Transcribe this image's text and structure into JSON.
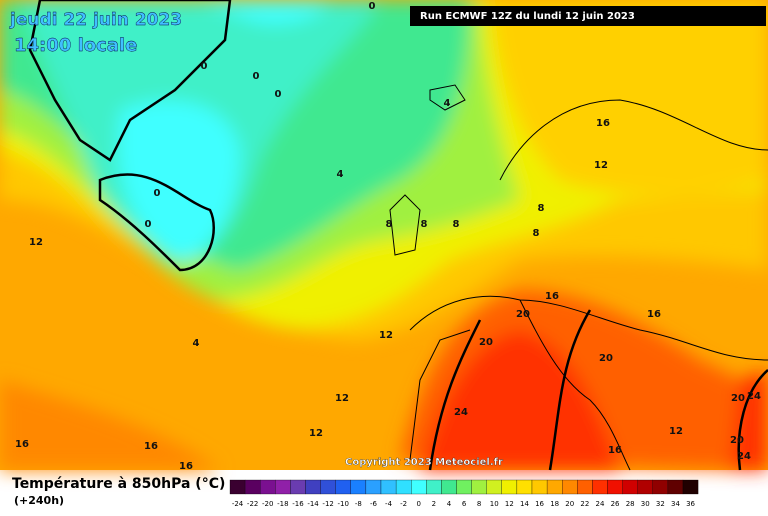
{
  "header": {
    "date": "jeudi 22 juin 2023",
    "time": "14:00 locale",
    "run": "Run ECMWF 12Z du lundi 12 juin 2023"
  },
  "copyright": "Copyright 2023 Meteociel.fr",
  "footer": {
    "title": "Température à 850hPa (°C)",
    "lead": "(+240h)"
  },
  "legend": {
    "labels": [
      "-24",
      "-22",
      "-20",
      "-18",
      "-16",
      "-14",
      "-12",
      "-10",
      "-8",
      "-6",
      "-4",
      "-2",
      "0",
      "2",
      "4",
      "6",
      "8",
      "10",
      "12",
      "14",
      "16",
      "18",
      "20",
      "22",
      "24",
      "26",
      "28",
      "30",
      "32",
      "34",
      "36"
    ],
    "colors": [
      "#3a0030",
      "#5a0060",
      "#7a1090",
      "#9020a8",
      "#6a3cb0",
      "#4040c0",
      "#3050d8",
      "#2060f0",
      "#1a80ff",
      "#2aa0ff",
      "#30c0ff",
      "#30e0ff",
      "#40ffff",
      "#40f0c8",
      "#40e890",
      "#70f060",
      "#a0f040",
      "#d0f020",
      "#f0f000",
      "#ffe000",
      "#ffc800",
      "#ffa800",
      "#ff8800",
      "#ff6000",
      "#ff3000",
      "#f01000",
      "#d00000",
      "#b00000",
      "#900000",
      "#600000",
      "#200000"
    ]
  },
  "contour_labels": [
    "0",
    "0",
    "0",
    "0",
    "0",
    "0",
    "4",
    "4",
    "4",
    "8",
    "8",
    "8",
    "8",
    "8",
    "12",
    "12",
    "12",
    "12",
    "12",
    "12",
    "16",
    "16",
    "16",
    "16",
    "16",
    "16",
    "16",
    "20",
    "20",
    "20",
    "20",
    "20",
    "24",
    "24",
    "24"
  ]
}
